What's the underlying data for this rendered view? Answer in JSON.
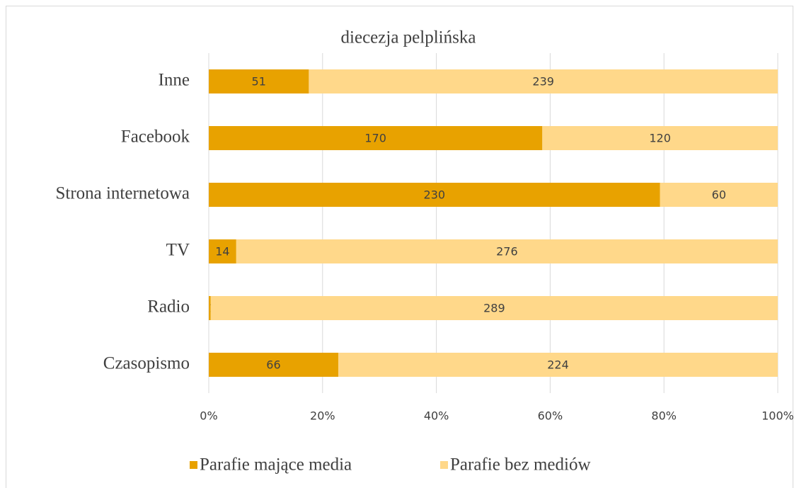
{
  "chart_data": {
    "type": "bar100",
    "orientation": "horizontal",
    "title": "diecezja pelplińska",
    "categories": [
      "Inne",
      "Facebook",
      "Strona internetowa",
      "TV",
      "Radio",
      "Czasopismo"
    ],
    "series": [
      {
        "name": "Parafie mające media",
        "color": "#E8A200",
        "values": [
          51,
          170,
          230,
          14,
          1,
          66
        ]
      },
      {
        "name": "Parafie bez mediów",
        "color": "#FFD88A",
        "values": [
          239,
          120,
          60,
          276,
          289,
          224
        ]
      }
    ],
    "xlim": [
      0,
      100
    ],
    "xticks": [
      {
        "value": 0,
        "label": "0%"
      },
      {
        "value": 20,
        "label": "20%"
      },
      {
        "value": 40,
        "label": "40%"
      },
      {
        "value": 60,
        "label": "60%"
      },
      {
        "value": 80,
        "label": "80%"
      },
      {
        "value": 100,
        "label": "100%"
      }
    ],
    "grid": true,
    "legend": "bottom"
  }
}
